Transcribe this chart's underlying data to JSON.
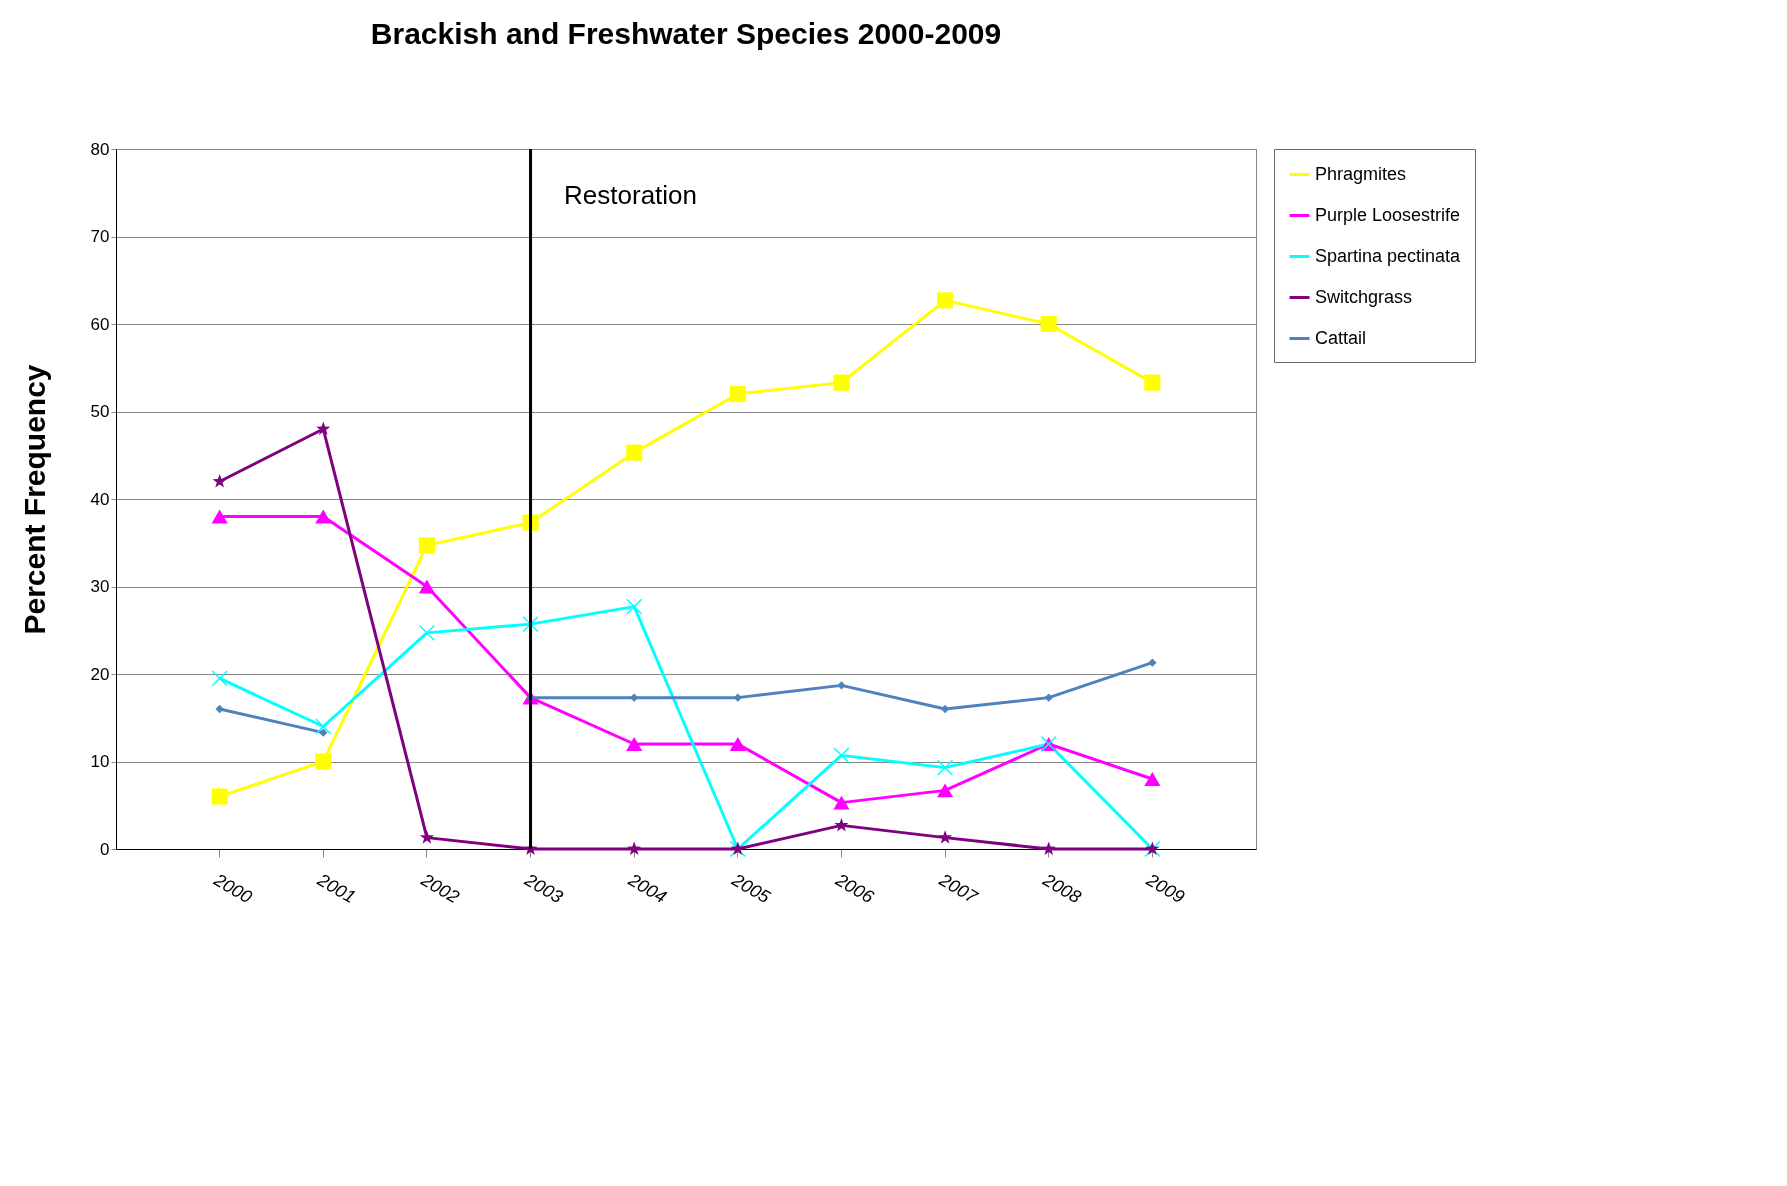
{
  "chart_data": {
    "type": "line",
    "title": "Brackish and Freshwater Species 2000-2009",
    "ylabel": "Percent Frequency",
    "categories": [
      "2000",
      "2001",
      "2002",
      "2003",
      "2004",
      "2005",
      "2006",
      "2007",
      "2008",
      "2009"
    ],
    "series": [
      {
        "name": "Phragmites",
        "color": "#ffff00",
        "marker": "square",
        "values": [
          6,
          10,
          34.7,
          37.3,
          45.3,
          52,
          53.3,
          62.7,
          60,
          53.3
        ]
      },
      {
        "name": "Purple Loosestrife",
        "color": "#ff00ff",
        "marker": "triangle",
        "values": [
          38,
          38,
          30,
          17.3,
          12,
          12,
          5.3,
          6.7,
          12,
          8
        ]
      },
      {
        "name": "Spartina pectinata",
        "color": "#00ffff",
        "marker": "cross",
        "values": [
          19.5,
          14,
          24.7,
          25.7,
          27.7,
          0,
          10.7,
          9.3,
          12,
          0
        ]
      },
      {
        "name": "Switchgrass",
        "color": "#800080",
        "marker": "star",
        "values": [
          42,
          48,
          1.3,
          0,
          0,
          0,
          2.7,
          1.3,
          0,
          0
        ]
      },
      {
        "name": "Cattail",
        "color": "#4f81bd",
        "marker": "diamond",
        "values": [
          16,
          13.3,
          null,
          17.3,
          17.3,
          17.3,
          18.7,
          16,
          17.3,
          21.3
        ]
      }
    ],
    "ylim": [
      0,
      80
    ],
    "yticks": [
      0,
      10,
      20,
      30,
      40,
      50,
      60,
      70,
      80
    ],
    "grid": "y",
    "legend": "top right",
    "line_style": "solid",
    "ref_lines": [
      {
        "axis": "x",
        "value": "2003",
        "label": "Restoration",
        "color": "#000000"
      }
    ]
  }
}
